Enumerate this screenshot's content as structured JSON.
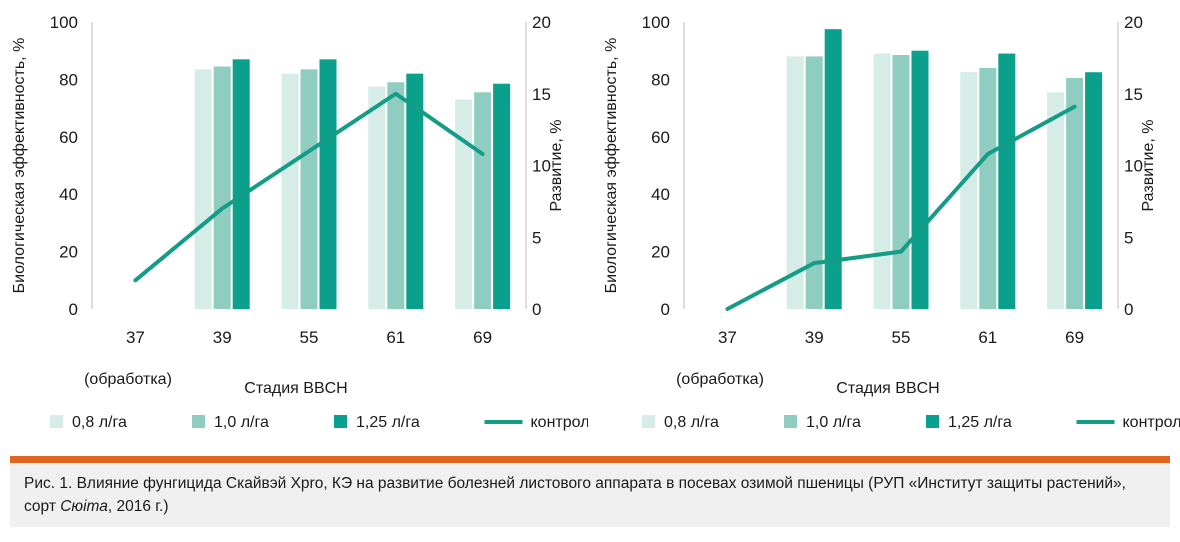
{
  "chart_data": [
    {
      "type": "bar",
      "categories": [
        "37",
        "39",
        "55",
        "61",
        "69"
      ],
      "category_note": "(обработка)",
      "xlabel": "Стадия BBCH",
      "ylabel": "Биологическая эффективность, %",
      "ylim": [
        0,
        100
      ],
      "yticks": [
        "0",
        "20",
        "40",
        "60",
        "80",
        "100"
      ],
      "y2label": "Развитие, %",
      "y2lim": [
        0,
        20
      ],
      "y2ticks": [
        "0",
        "5",
        "10",
        "15",
        "20"
      ],
      "grid": false,
      "legend_position": "bottom",
      "series": [
        {
          "name": "0,8 л/га",
          "type": "bar",
          "color": "#d6ece7",
          "values": [
            null,
            83.5,
            82,
            77.5,
            73
          ]
        },
        {
          "name": "1,0 л/га",
          "type": "bar",
          "color": "#8ecdc0",
          "values": [
            null,
            84.5,
            83.5,
            79,
            75.5
          ]
        },
        {
          "name": "1,25 л/га",
          "type": "bar",
          "color": "#0aa08c",
          "values": [
            null,
            87,
            87,
            82,
            78.5
          ]
        },
        {
          "name": "контроль",
          "type": "line",
          "axis": "right",
          "color": "#159c86",
          "values": [
            2,
            7,
            11,
            15,
            10.8
          ]
        }
      ]
    },
    {
      "type": "bar",
      "categories": [
        "37",
        "39",
        "55",
        "61",
        "69"
      ],
      "category_note": "(обработка)",
      "xlabel": "Стадия BBCH",
      "ylabel": "Биологическая эффективность, %",
      "ylim": [
        0,
        100
      ],
      "yticks": [
        "0",
        "20",
        "40",
        "60",
        "80",
        "100"
      ],
      "y2label": "Развитие, %",
      "y2lim": [
        0,
        20
      ],
      "y2ticks": [
        "0",
        "5",
        "10",
        "15",
        "20"
      ],
      "grid": false,
      "legend_position": "bottom",
      "series": [
        {
          "name": "0,8 л/га",
          "type": "bar",
          "color": "#d6ece7",
          "values": [
            null,
            88,
            89,
            82.5,
            75.5
          ]
        },
        {
          "name": "1,0 л/га",
          "type": "bar",
          "color": "#8ecdc0",
          "values": [
            null,
            88,
            88.5,
            84,
            80.5
          ]
        },
        {
          "name": "1,25 л/га",
          "type": "bar",
          "color": "#0aa08c",
          "values": [
            null,
            97.5,
            90,
            89,
            82.5
          ]
        },
        {
          "name": "контроль",
          "type": "line",
          "axis": "right",
          "color": "#159c86",
          "values": [
            0,
            3.2,
            4,
            10.8,
            14.1
          ]
        }
      ]
    }
  ],
  "caption": {
    "text_before": "Рис. 1. Влияние фунгицида Скайвэй Xpro, КЭ на развитие болезней листового аппарата в посевах озимой пшеницы (РУП «Институт защиты растений», сорт ",
    "variety": "Сюіта",
    "text_after": ", 2016 г.)"
  },
  "colors": {
    "accent_bar": "#e0671f",
    "caption_bg": "#f0f0f0"
  }
}
